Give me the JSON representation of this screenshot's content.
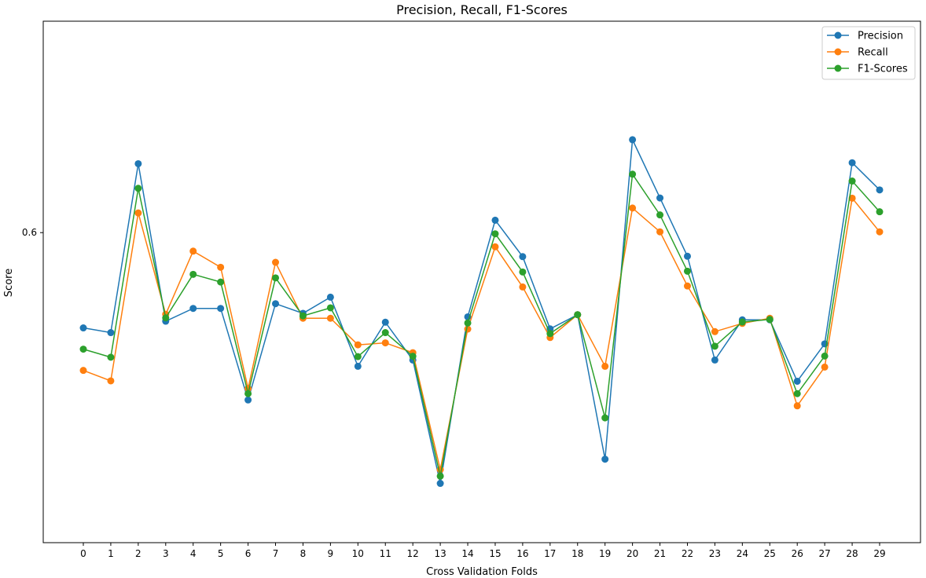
{
  "chart_data": {
    "type": "line",
    "title": "Precision, Recall, F1-Scores",
    "xlabel": "Cross Validation Folds",
    "ylabel": "Score",
    "x": [
      0,
      1,
      2,
      3,
      4,
      5,
      6,
      7,
      8,
      9,
      10,
      11,
      12,
      13,
      14,
      15,
      16,
      17,
      18,
      19,
      20,
      21,
      22,
      23,
      24,
      25,
      26,
      27,
      28,
      29
    ],
    "y_tick_values": [
      0.6
    ],
    "y_tick_labels": [
      "0.6"
    ],
    "ylim": [
      0.4425,
      0.7074
    ],
    "grid": false,
    "legend_position": "top-right",
    "series": [
      {
        "name": "Precision",
        "color": "#1f77b4",
        "values": [
          0.5516,
          0.5492,
          0.635,
          0.555,
          0.5615,
          0.5615,
          0.515,
          0.5639,
          0.559,
          0.5672,
          0.5321,
          0.5545,
          0.5353,
          0.4726,
          0.5572,
          0.6063,
          0.5878,
          0.5511,
          0.5583,
          0.4849,
          0.6472,
          0.6176,
          0.588,
          0.5353,
          0.5557,
          0.5557,
          0.5245,
          0.5435,
          0.6355,
          0.6217
        ]
      },
      {
        "name": "Recall",
        "color": "#ff7f0e",
        "values": [
          0.53,
          0.5247,
          0.61,
          0.5585,
          0.5906,
          0.5824,
          0.5208,
          0.5849,
          0.5565,
          0.5565,
          0.543,
          0.544,
          0.539,
          0.4796,
          0.551,
          0.5928,
          0.5724,
          0.5467,
          0.5583,
          0.5321,
          0.6125,
          0.6004,
          0.5729,
          0.5497,
          0.5539,
          0.5565,
          0.512,
          0.5317,
          0.6175,
          0.6004
        ]
      },
      {
        "name": "F1-Scores",
        "color": "#2ca02c",
        "values": [
          0.5408,
          0.5367,
          0.6225,
          0.5567,
          0.5788,
          0.5749,
          0.5182,
          0.577,
          0.5577,
          0.5618,
          0.537,
          0.5492,
          0.5372,
          0.4763,
          0.5541,
          0.5994,
          0.58,
          0.5487,
          0.5583,
          0.5059,
          0.6297,
          0.609,
          0.5804,
          0.5423,
          0.5546,
          0.5559,
          0.5182,
          0.5373,
          0.6262,
          0.6106
        ]
      }
    ]
  }
}
